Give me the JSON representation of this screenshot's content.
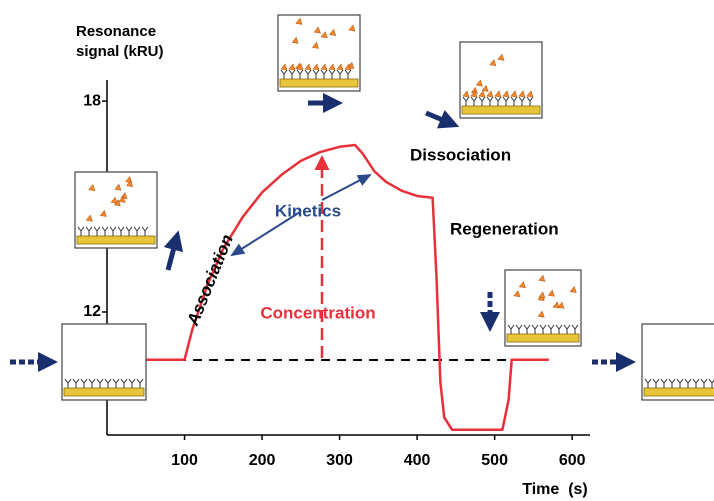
{
  "chart_data": {
    "type": "line",
    "y_label_lines": [
      "Resonance",
      "signal (kRU)"
    ],
    "x_label": "Time  (s)",
    "annotations": {
      "association": "Association",
      "kinetics": "Kinetics",
      "concentration": "Concentration",
      "dissociation": "Dissociation",
      "regeneration": "Regeneration"
    },
    "xlim": [
      0,
      623
    ],
    "ylim": [
      8.5,
      18.6
    ],
    "xticks": [
      100,
      200,
      300,
      400,
      500,
      600
    ],
    "yticks": [
      12,
      18
    ],
    "x": [
      49,
      100,
      110,
      130,
      150,
      175,
      200,
      225,
      250,
      275,
      300,
      320,
      330,
      345,
      360,
      380,
      400,
      420,
      425,
      430,
      435,
      445,
      510,
      518,
      522,
      570
    ],
    "series": [
      {
        "color": "#e8303a",
        "values": [
          10.64,
          10.64,
          11.5,
          12.8,
          13.8,
          14.7,
          15.4,
          15.9,
          16.3,
          16.55,
          16.7,
          16.75,
          16.5,
          16.0,
          15.7,
          15.45,
          15.3,
          15.25,
          13,
          10,
          9,
          8.65,
          8.65,
          9.5,
          10.64,
          10.64
        ]
      }
    ]
  }
}
